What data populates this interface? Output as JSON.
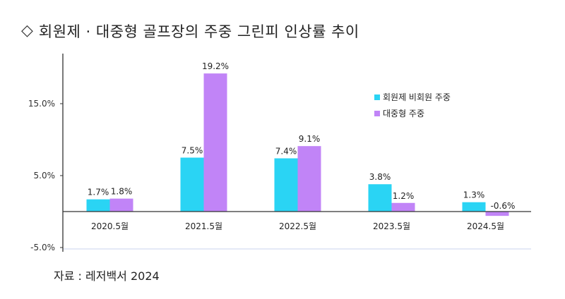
{
  "title": {
    "icon": "diamond-outline-icon",
    "symbol": "◇",
    "text": "회원제 · 대중형 골프장의 주중 그린피 인상률 추이"
  },
  "source": "자료 : 레저백서 2024",
  "colors": {
    "series1": "#2ad4f4",
    "series2": "#c184f7",
    "axis": "#333333",
    "grid": "#c9d3ec"
  },
  "chart_data": {
    "type": "bar",
    "categories": [
      "2020.5월",
      "2021.5월",
      "2022.5월",
      "2023.5월",
      "2024.5월"
    ],
    "series": [
      {
        "name": "회원제 비회원 주중",
        "values": [
          1.7,
          7.5,
          7.4,
          3.8,
          1.3
        ],
        "labels": [
          "1.7%",
          "7.5%",
          "7.4%",
          "3.8%",
          "1.3%"
        ]
      },
      {
        "name": "대중형 주중",
        "values": [
          1.8,
          19.2,
          9.1,
          1.2,
          -0.6
        ],
        "labels": [
          "1.8%",
          "19.2%",
          "9.1%",
          "1.2%",
          "-0.6%"
        ]
      }
    ],
    "yticks": [
      15.0,
      5.0,
      -5.0
    ],
    "ytick_labels": [
      "15.0%",
      "5.0%",
      "-5.0%"
    ],
    "ylim": [
      -5.0,
      22.0
    ],
    "legend_position": "top-right",
    "grid": false
  }
}
